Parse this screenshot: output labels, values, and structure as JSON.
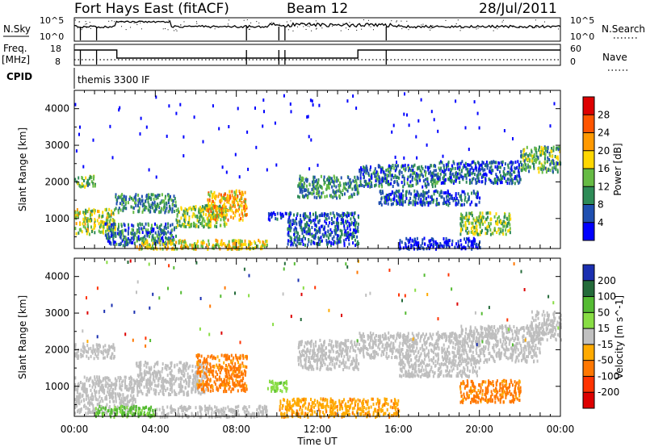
{
  "header": {
    "title": "Fort Hays East (fitACF)",
    "beam": "Beam 12",
    "date": "28/Jul/2011"
  },
  "status": {
    "nsky_label": "N.Sky",
    "nsky_ticks": [
      "10^5",
      "10^0"
    ],
    "nsearch_label": "N.Search",
    "nsearch_ticks": [
      "10^5",
      "10^0"
    ],
    "freq_label": "Freq.",
    "freq_unit": "[MHz]",
    "freq_ticks": [
      "18",
      "8"
    ],
    "nave_label": "Nave",
    "nave_ticks": [
      "60",
      "0"
    ],
    "cpid_label": "CPID",
    "cpid_text": "themis 3300 IF"
  },
  "time_axis": {
    "label": "Time UT",
    "ticks": [
      "00:00",
      "04:00",
      "08:00",
      "12:00",
      "16:00",
      "20:00",
      "00:00"
    ]
  },
  "colors": {
    "power": [
      "#0000ff",
      "#1f4fb0",
      "#2e8b57",
      "#66bb44",
      "#ffd700",
      "#ff9900",
      "#ff5500",
      "#dd0000"
    ],
    "velocity": [
      "#1a2fb0",
      "#246b3a",
      "#55bb33",
      "#88dd44",
      "#c0c0c0",
      "#ffaa00",
      "#ff7700",
      "#ff3300",
      "#dd0000"
    ],
    "ground_scatter": "#bebebe"
  },
  "chart_data": [
    {
      "type": "heatmap",
      "name": "power",
      "xlabel": "Time UT",
      "ylabel": "Slant Range [km]",
      "xlim": [
        0,
        24
      ],
      "ylim": [
        180,
        4500
      ],
      "y_ticks": [
        1000,
        2000,
        3000,
        4000
      ],
      "colorbar": {
        "label": "Power [dB]",
        "ticks": [
          "4",
          "8",
          "12",
          "16",
          "20",
          "24",
          "28"
        ]
      },
      "regions": [
        {
          "t": [
            0.0,
            2.0
          ],
          "r": [
            600,
            1300
          ],
          "v": 20
        },
        {
          "t": [
            0.0,
            1.0
          ],
          "r": [
            1900,
            2200
          ],
          "v": 16
        },
        {
          "t": [
            1.5,
            5.0
          ],
          "r": [
            300,
            900
          ],
          "v": 12
        },
        {
          "t": [
            2.0,
            5.0
          ],
          "r": [
            1200,
            1700
          ],
          "v": 14
        },
        {
          "t": [
            3.0,
            9.5
          ],
          "r": [
            200,
            450
          ],
          "v": 22
        },
        {
          "t": [
            5.0,
            7.5
          ],
          "r": [
            800,
            1400
          ],
          "v": 18
        },
        {
          "t": [
            6.5,
            8.5
          ],
          "r": [
            1000,
            1800
          ],
          "v": 24
        },
        {
          "t": [
            9.5,
            10.5
          ],
          "r": [
            1000,
            1200
          ],
          "v": 8
        },
        {
          "t": [
            10.5,
            14.0
          ],
          "r": [
            300,
            1200
          ],
          "v": 10
        },
        {
          "t": [
            11.0,
            14.0
          ],
          "r": [
            1600,
            2200
          ],
          "v": 14
        },
        {
          "t": [
            14.0,
            18.0
          ],
          "r": [
            1900,
            2500
          ],
          "v": 12
        },
        {
          "t": [
            15.0,
            20.0
          ],
          "r": [
            1400,
            1800
          ],
          "v": 10
        },
        {
          "t": [
            18.0,
            22.0
          ],
          "r": [
            2000,
            2600
          ],
          "v": 10
        },
        {
          "t": [
            19.0,
            21.5
          ],
          "r": [
            600,
            1200
          ],
          "v": 18
        },
        {
          "t": [
            22.0,
            24.0
          ],
          "r": [
            2300,
            3000
          ],
          "v": 16
        },
        {
          "t": [
            16.0,
            20.0
          ],
          "r": [
            200,
            500
          ],
          "v": 6
        }
      ]
    },
    {
      "type": "heatmap",
      "name": "velocity",
      "xlabel": "Time UT",
      "ylabel": "Slant Range [km]",
      "xlim": [
        0,
        24
      ],
      "ylim": [
        180,
        4500
      ],
      "y_ticks": [
        1000,
        2000,
        3000,
        4000
      ],
      "colorbar": {
        "label": "Velocity [m s^-1]",
        "ticks": [
          "200",
          "100",
          "50",
          "15",
          "-15",
          "-50",
          "-100",
          "-200"
        ]
      },
      "regions": [
        {
          "t": [
            0.0,
            3.0
          ],
          "r": [
            300,
            1300
          ],
          "v": 0,
          "gs": true
        },
        {
          "t": [
            0.0,
            2.0
          ],
          "r": [
            1800,
            2200
          ],
          "v": 0,
          "gs": true
        },
        {
          "t": [
            1.0,
            4.0
          ],
          "r": [
            200,
            500
          ],
          "v": 60
        },
        {
          "t": [
            3.0,
            6.5
          ],
          "r": [
            800,
            1700
          ],
          "v": 0,
          "gs": true
        },
        {
          "t": [
            4.0,
            9.5
          ],
          "r": [
            200,
            500
          ],
          "v": 0,
          "gs": true
        },
        {
          "t": [
            6.0,
            8.5
          ],
          "r": [
            900,
            1900
          ],
          "v": -60
        },
        {
          "t": [
            9.5,
            10.5
          ],
          "r": [
            900,
            1200
          ],
          "v": 40
        },
        {
          "t": [
            10.0,
            16.0
          ],
          "r": [
            200,
            700
          ],
          "v": -40
        },
        {
          "t": [
            11.0,
            14.0
          ],
          "r": [
            1500,
            2300
          ],
          "v": 0,
          "gs": true
        },
        {
          "t": [
            14.0,
            19.0
          ],
          "r": [
            1800,
            2500
          ],
          "v": 0,
          "gs": true
        },
        {
          "t": [
            16.0,
            20.0
          ],
          "r": [
            1300,
            1800
          ],
          "v": 0,
          "gs": true
        },
        {
          "t": [
            19.0,
            23.0
          ],
          "r": [
            1700,
            2700
          ],
          "v": 0,
          "gs": true
        },
        {
          "t": [
            22.5,
            24.0
          ],
          "r": [
            2300,
            3100
          ],
          "v": 0,
          "gs": true
        },
        {
          "t": [
            19.0,
            22.0
          ],
          "r": [
            600,
            1200
          ],
          "v": -60
        }
      ]
    }
  ]
}
